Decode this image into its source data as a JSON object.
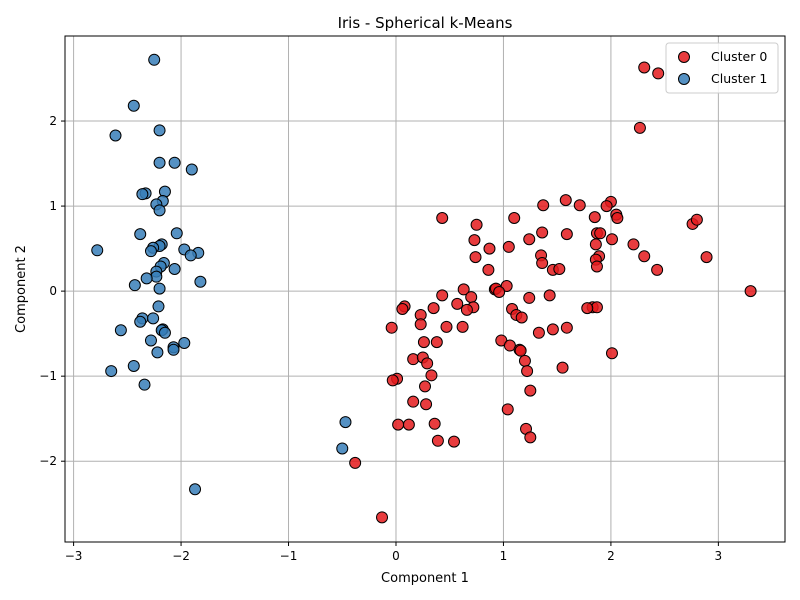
{
  "chart_data": {
    "type": "scatter",
    "title": "Iris - Spherical k-Means",
    "xlabel": "Component 1",
    "ylabel": "Component 2",
    "xlim": [
      -3.08,
      3.62
    ],
    "ylim": [
      -2.95,
      3.0
    ],
    "xticks": [
      -3,
      -2,
      -1,
      0,
      1,
      2,
      3
    ],
    "yticks": [
      -2,
      -1,
      0,
      1,
      2
    ],
    "grid": true,
    "legend_position": "top-right",
    "series": [
      {
        "name": "Cluster 0",
        "color": "#e41a1c",
        "points": [
          [
            2.31,
            2.63
          ],
          [
            2.44,
            2.56
          ],
          [
            2.27,
            1.92
          ],
          [
            1.58,
            1.07
          ],
          [
            2.0,
            1.05
          ],
          [
            1.96,
            1.0
          ],
          [
            1.71,
            1.01
          ],
          [
            2.05,
            0.9
          ],
          [
            2.06,
            0.86
          ],
          [
            1.85,
            0.87
          ],
          [
            1.37,
            1.01
          ],
          [
            0.43,
            0.86
          ],
          [
            1.1,
            0.86
          ],
          [
            2.76,
            0.79
          ],
          [
            2.8,
            0.84
          ],
          [
            0.75,
            0.78
          ],
          [
            1.36,
            0.69
          ],
          [
            1.59,
            0.67
          ],
          [
            1.87,
            0.68
          ],
          [
            1.9,
            0.68
          ],
          [
            0.73,
            0.6
          ],
          [
            1.24,
            0.61
          ],
          [
            2.01,
            0.61
          ],
          [
            2.21,
            0.55
          ],
          [
            1.86,
            0.55
          ],
          [
            1.05,
            0.52
          ],
          [
            0.87,
            0.5
          ],
          [
            1.35,
            0.42
          ],
          [
            1.89,
            0.41
          ],
          [
            2.31,
            0.41
          ],
          [
            2.89,
            0.4
          ],
          [
            0.74,
            0.4
          ],
          [
            1.86,
            0.37
          ],
          [
            1.36,
            0.33
          ],
          [
            1.87,
            0.29
          ],
          [
            0.86,
            0.25
          ],
          [
            1.46,
            0.25
          ],
          [
            1.52,
            0.26
          ],
          [
            2.43,
            0.25
          ],
          [
            3.3,
            0.0
          ],
          [
            0.92,
            0.02
          ],
          [
            0.63,
            0.02
          ],
          [
            0.93,
            0.03
          ],
          [
            1.03,
            0.06
          ],
          [
            0.96,
            -0.01
          ],
          [
            0.43,
            -0.05
          ],
          [
            0.7,
            -0.07
          ],
          [
            1.43,
            -0.05
          ],
          [
            1.24,
            -0.08
          ],
          [
            0.57,
            -0.15
          ],
          [
            0.72,
            -0.19
          ],
          [
            0.35,
            -0.2
          ],
          [
            0.08,
            -0.18
          ],
          [
            0.06,
            -0.21
          ],
          [
            0.66,
            -0.22
          ],
          [
            1.08,
            -0.21
          ],
          [
            1.83,
            -0.19
          ],
          [
            1.87,
            -0.19
          ],
          [
            1.78,
            -0.2
          ],
          [
            0.23,
            -0.28
          ],
          [
            1.12,
            -0.28
          ],
          [
            1.17,
            -0.31
          ],
          [
            0.23,
            -0.39
          ],
          [
            0.47,
            -0.42
          ],
          [
            0.62,
            -0.42
          ],
          [
            -0.04,
            -0.43
          ],
          [
            1.33,
            -0.49
          ],
          [
            1.46,
            -0.45
          ],
          [
            1.59,
            -0.43
          ],
          [
            0.26,
            -0.6
          ],
          [
            0.38,
            -0.6
          ],
          [
            0.98,
            -0.58
          ],
          [
            1.06,
            -0.64
          ],
          [
            1.15,
            -0.69
          ],
          [
            1.16,
            -0.7
          ],
          [
            0.16,
            -0.8
          ],
          [
            0.25,
            -0.78
          ],
          [
            2.01,
            -0.73
          ],
          [
            1.2,
            -0.82
          ],
          [
            0.29,
            -0.85
          ],
          [
            1.55,
            -0.9
          ],
          [
            1.22,
            -0.94
          ],
          [
            0.33,
            -0.99
          ],
          [
            0.01,
            -1.03
          ],
          [
            -0.03,
            -1.05
          ],
          [
            0.27,
            -1.12
          ],
          [
            1.25,
            -1.17
          ],
          [
            0.16,
            -1.3
          ],
          [
            0.28,
            -1.33
          ],
          [
            1.04,
            -1.39
          ],
          [
            0.36,
            -1.56
          ],
          [
            0.12,
            -1.57
          ],
          [
            0.02,
            -1.57
          ],
          [
            1.21,
            -1.62
          ],
          [
            1.25,
            -1.72
          ],
          [
            0.39,
            -1.76
          ],
          [
            0.54,
            -1.77
          ],
          [
            -0.38,
            -2.02
          ],
          [
            -0.13,
            -2.66
          ]
        ]
      },
      {
        "name": "Cluster 1",
        "color": "#377eb8",
        "points": [
          [
            -2.25,
            2.72
          ],
          [
            -2.44,
            2.18
          ],
          [
            -2.61,
            1.83
          ],
          [
            -2.2,
            1.89
          ],
          [
            -2.2,
            1.51
          ],
          [
            -2.06,
            1.51
          ],
          [
            -1.9,
            1.43
          ],
          [
            -2.33,
            1.15
          ],
          [
            -2.36,
            1.14
          ],
          [
            -2.15,
            1.17
          ],
          [
            -2.17,
            1.06
          ],
          [
            -2.23,
            1.02
          ],
          [
            -2.2,
            0.95
          ],
          [
            -2.38,
            0.67
          ],
          [
            -2.04,
            0.68
          ],
          [
            -2.18,
            0.55
          ],
          [
            -2.2,
            0.53
          ],
          [
            -2.26,
            0.51
          ],
          [
            -2.28,
            0.47
          ],
          [
            -1.97,
            0.49
          ],
          [
            -1.84,
            0.45
          ],
          [
            -1.91,
            0.42
          ],
          [
            -2.78,
            0.48
          ],
          [
            -2.16,
            0.33
          ],
          [
            -2.19,
            0.29
          ],
          [
            -2.06,
            0.26
          ],
          [
            -2.23,
            0.23
          ],
          [
            -2.23,
            0.17
          ],
          [
            -2.32,
            0.15
          ],
          [
            -1.82,
            0.11
          ],
          [
            -2.43,
            0.07
          ],
          [
            -2.2,
            0.03
          ],
          [
            -2.21,
            -0.18
          ],
          [
            -2.36,
            -0.32
          ],
          [
            -2.26,
            -0.32
          ],
          [
            -2.38,
            -0.36
          ],
          [
            -2.17,
            -0.45
          ],
          [
            -2.18,
            -0.46
          ],
          [
            -2.15,
            -0.49
          ],
          [
            -2.56,
            -0.46
          ],
          [
            -2.28,
            -0.58
          ],
          [
            -1.97,
            -0.61
          ],
          [
            -2.07,
            -0.66
          ],
          [
            -2.07,
            -0.69
          ],
          [
            -2.22,
            -0.72
          ],
          [
            -2.44,
            -0.88
          ],
          [
            -2.65,
            -0.94
          ],
          [
            -2.34,
            -1.1
          ],
          [
            -0.47,
            -1.54
          ],
          [
            -0.5,
            -1.85
          ],
          [
            -1.87,
            -2.33
          ]
        ]
      }
    ]
  }
}
